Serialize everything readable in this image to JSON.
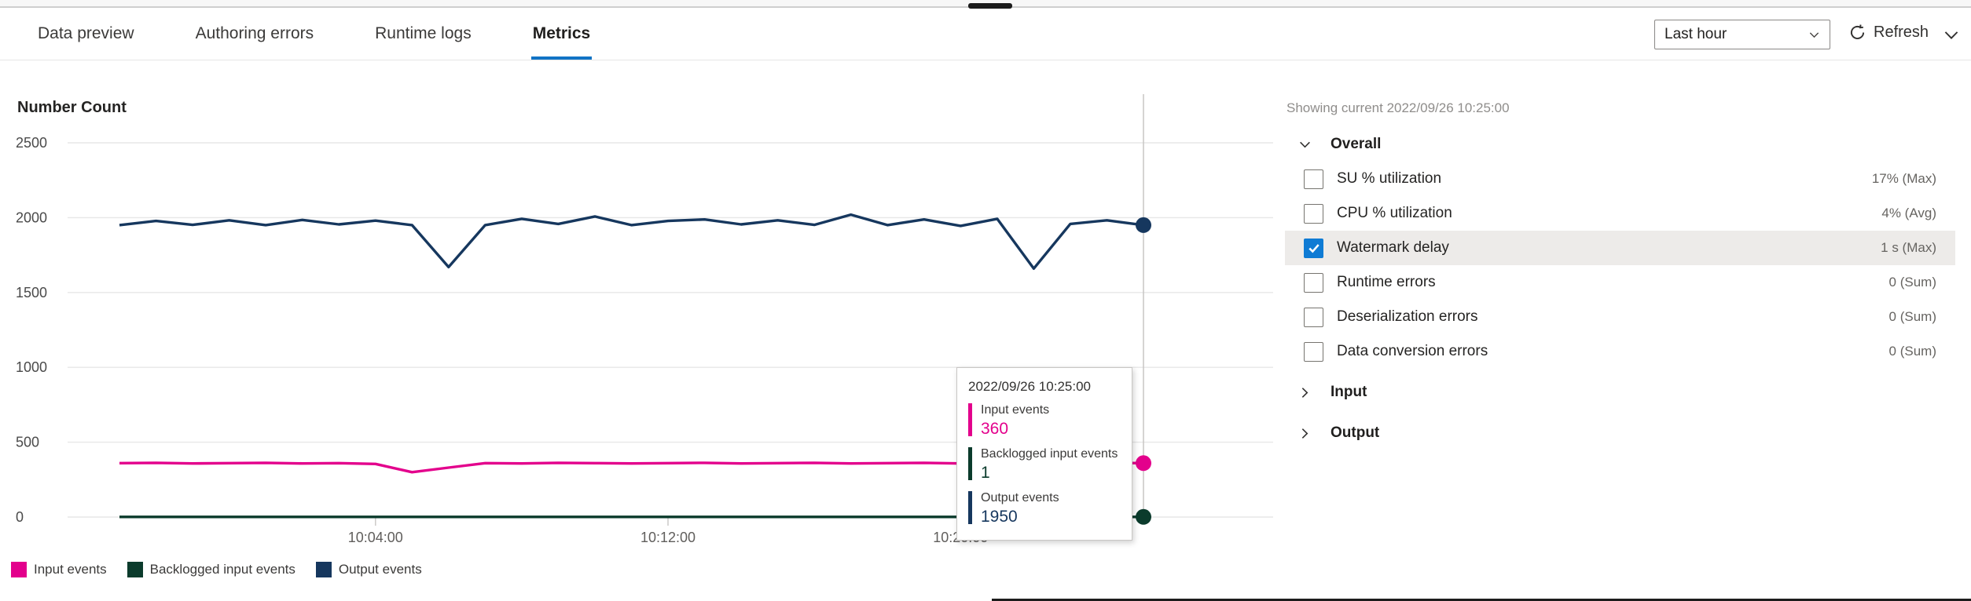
{
  "tabs": [
    {
      "label": "Data preview",
      "active": false
    },
    {
      "label": "Authoring errors",
      "active": false
    },
    {
      "label": "Runtime logs",
      "active": false
    },
    {
      "label": "Metrics",
      "active": true
    }
  ],
  "toolbar": {
    "time_range_value": "Last hour",
    "refresh_label": "Refresh"
  },
  "chart": {
    "title": "Number Count",
    "tooltip": {
      "title": "2022/09/26 10:25:00",
      "rows": [
        {
          "label": "Input events",
          "value": "360",
          "color": "#e3008c"
        },
        {
          "label": "Backlogged input events",
          "value": "1",
          "color": "#0b3b2c"
        },
        {
          "label": "Output events",
          "value": "1950",
          "color": "#16375e"
        }
      ]
    }
  },
  "chart_data": {
    "type": "line",
    "title": "Number Count",
    "ylim": [
      0,
      2500
    ],
    "yticks": [
      0,
      500,
      1000,
      1500,
      2000,
      2500
    ],
    "grid": true,
    "legend_position": "bottom",
    "x": [
      "09:57:00",
      "09:58:00",
      "09:59:00",
      "10:00:00",
      "10:01:00",
      "10:02:00",
      "10:03:00",
      "10:04:00",
      "10:05:00",
      "10:06:00",
      "10:07:00",
      "10:08:00",
      "10:09:00",
      "10:10:00",
      "10:11:00",
      "10:12:00",
      "10:13:00",
      "10:14:00",
      "10:15:00",
      "10:16:00",
      "10:17:00",
      "10:18:00",
      "10:19:00",
      "10:20:00",
      "10:21:00",
      "10:22:00",
      "10:23:00",
      "10:24:00",
      "10:25:00"
    ],
    "xticks": [
      {
        "label": "10:04:00",
        "index": 7
      },
      {
        "label": "10:12:00",
        "index": 15
      },
      {
        "label": "10:20:00",
        "index": 23
      }
    ],
    "series": [
      {
        "name": "Input events",
        "color": "#e3008c",
        "values": [
          360,
          362,
          358,
          360,
          362,
          358,
          360,
          355,
          300,
          330,
          360,
          358,
          362,
          360,
          358,
          360,
          362,
          358,
          360,
          362,
          358,
          360,
          362,
          358,
          360,
          358,
          360,
          362,
          360
        ]
      },
      {
        "name": "Backlogged input events",
        "color": "#0b3b2c",
        "values": [
          1,
          1,
          1,
          1,
          1,
          1,
          1,
          1,
          1,
          1,
          1,
          1,
          1,
          1,
          1,
          1,
          1,
          1,
          1,
          1,
          1,
          1,
          1,
          1,
          1,
          1,
          1,
          1,
          1
        ]
      },
      {
        "name": "Output events",
        "color": "#16375e",
        "values": [
          1950,
          1978,
          1952,
          1982,
          1950,
          1985,
          1955,
          1980,
          1950,
          1670,
          1950,
          1992,
          1958,
          2008,
          1950,
          1978,
          1988,
          1955,
          1982,
          1952,
          2020,
          1950,
          1988,
          1945,
          1992,
          1660,
          1958,
          1982,
          1950
        ]
      }
    ],
    "hover": {
      "index": 28,
      "time": "2022/09/26 10:25:00"
    }
  },
  "panel": {
    "showing_current": "Showing current 2022/09/26 10:25:00",
    "groups": [
      {
        "label": "Overall",
        "expanded": true,
        "metrics": [
          {
            "label": "SU % utilization",
            "value": "17% (Max)",
            "checked": false,
            "selected": false
          },
          {
            "label": "CPU % utilization",
            "value": "4% (Avg)",
            "checked": false,
            "selected": false
          },
          {
            "label": "Watermark delay",
            "value": "1 s (Max)",
            "checked": true,
            "selected": true
          },
          {
            "label": "Runtime errors",
            "value": "0 (Sum)",
            "checked": false,
            "selected": false
          },
          {
            "label": "Deserialization errors",
            "value": "0 (Sum)",
            "checked": false,
            "selected": false
          },
          {
            "label": "Data conversion errors",
            "value": "0 (Sum)",
            "checked": false,
            "selected": false
          }
        ]
      },
      {
        "label": "Input",
        "expanded": false,
        "metrics": []
      },
      {
        "label": "Output",
        "expanded": false,
        "metrics": []
      }
    ]
  }
}
